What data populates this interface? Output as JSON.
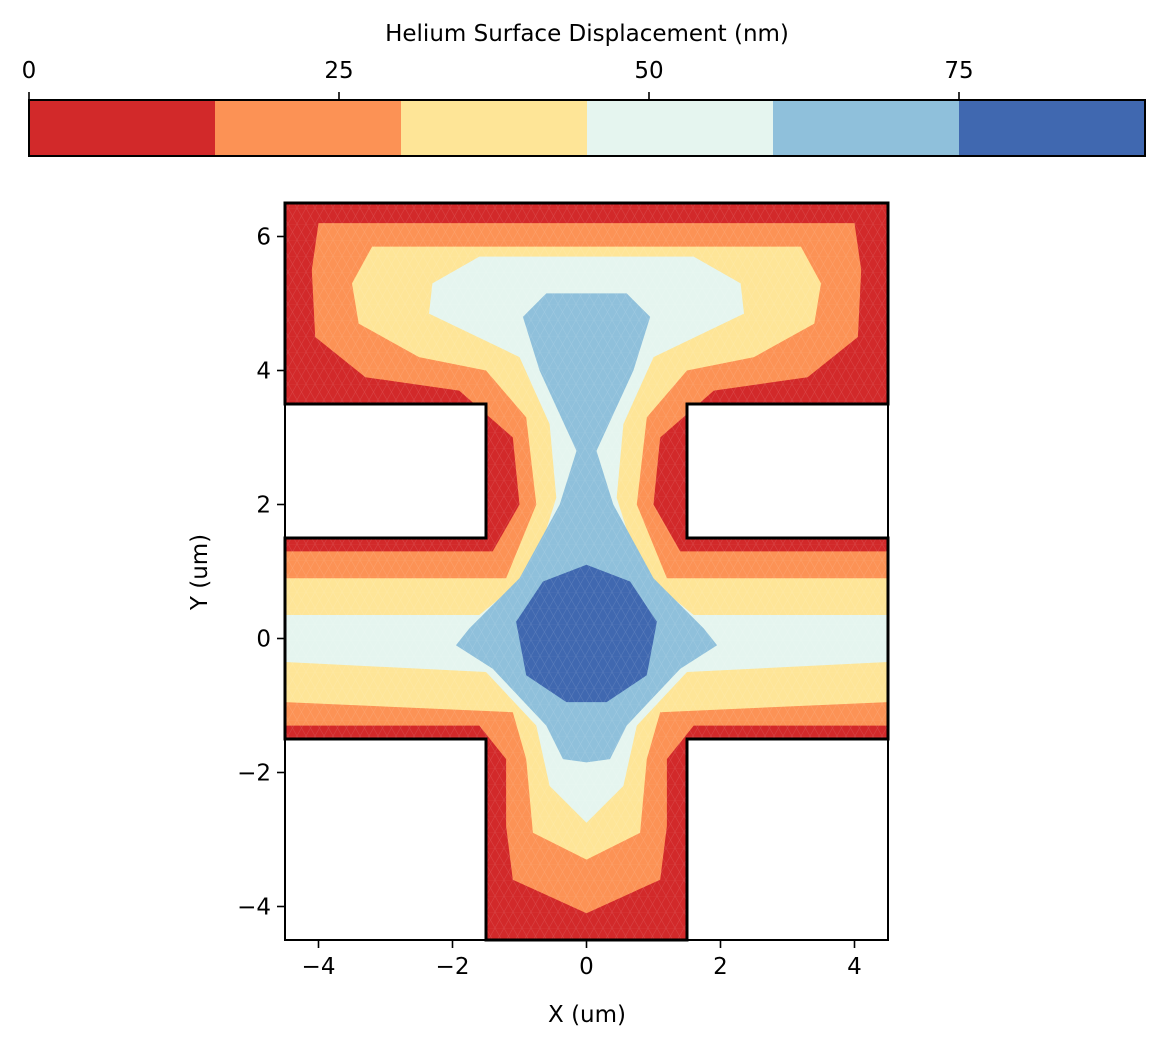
{
  "chart_data": {
    "type": "heatmap",
    "subtype": "filled-contour",
    "colorbar": {
      "label": "Helium Surface Displacement (nm)",
      "location": "top",
      "range": [
        0,
        90
      ],
      "ticks": [
        0,
        25,
        50,
        75
      ],
      "tick_labels": [
        "0",
        "25",
        "50",
        "75"
      ],
      "levels": [
        0,
        15,
        30,
        45,
        60,
        75,
        90
      ],
      "colors": [
        "#d2292a",
        "#fc9255",
        "#fee597",
        "#e5f5ef",
        "#8fc0db",
        "#4068b0"
      ]
    },
    "xlabel": "X (um)",
    "ylabel": "Y (um)",
    "xlim": [
      -4.5,
      4.5
    ],
    "ylim": [
      -4.5,
      6.5
    ],
    "xticks": [
      -4,
      -2,
      0,
      2,
      4
    ],
    "xtick_labels": [
      "−4",
      "−2",
      "0",
      "2",
      "4"
    ],
    "yticks": [
      -4,
      -2,
      0,
      2,
      4,
      6
    ],
    "ytick_labels": [
      "−4",
      "−2",
      "0",
      "2",
      "4",
      "6"
    ],
    "domain_outline_um": [
      [
        -4.5,
        6.5
      ],
      [
        4.5,
        6.5
      ],
      [
        4.5,
        3.5
      ],
      [
        1.5,
        3.5
      ],
      [
        1.5,
        1.5
      ],
      [
        4.5,
        1.5
      ],
      [
        4.5,
        -1.5
      ],
      [
        1.5,
        -1.5
      ],
      [
        1.5,
        -4.5
      ],
      [
        -1.5,
        -4.5
      ],
      [
        -1.5,
        -1.5
      ],
      [
        -4.5,
        -1.5
      ],
      [
        -4.5,
        1.5
      ],
      [
        -1.5,
        1.5
      ],
      [
        -1.5,
        3.5
      ],
      [
        -4.5,
        3.5
      ]
    ],
    "contour_regions_um": [
      {
        "level_index": 1,
        "polygon": [
          [
            -4.0,
            6.2
          ],
          [
            4.0,
            6.2
          ],
          [
            4.1,
            5.5
          ],
          [
            4.05,
            4.5
          ],
          [
            3.3,
            3.9
          ],
          [
            1.9,
            3.7
          ],
          [
            1.1,
            3.0
          ],
          [
            1.0,
            2.0
          ],
          [
            1.4,
            1.3
          ],
          [
            4.5,
            1.3
          ],
          [
            4.5,
            -1.3
          ],
          [
            1.6,
            -1.3
          ],
          [
            1.2,
            -1.8
          ],
          [
            1.2,
            -2.8
          ],
          [
            1.1,
            -3.6
          ],
          [
            0.0,
            -4.1
          ],
          [
            -1.1,
            -3.6
          ],
          [
            -1.2,
            -2.8
          ],
          [
            -1.2,
            -1.8
          ],
          [
            -1.6,
            -1.3
          ],
          [
            -4.5,
            -1.3
          ],
          [
            -4.5,
            1.3
          ],
          [
            -1.4,
            1.3
          ],
          [
            -1.0,
            2.0
          ],
          [
            -1.1,
            3.0
          ],
          [
            -1.9,
            3.7
          ],
          [
            -3.3,
            3.9
          ],
          [
            -4.05,
            4.5
          ],
          [
            -4.1,
            5.5
          ]
        ]
      },
      {
        "level_index": 2,
        "polygon": [
          [
            -3.2,
            5.85
          ],
          [
            3.2,
            5.85
          ],
          [
            3.5,
            5.3
          ],
          [
            3.4,
            4.7
          ],
          [
            2.5,
            4.2
          ],
          [
            1.5,
            4.0
          ],
          [
            0.9,
            3.3
          ],
          [
            0.75,
            2.0
          ],
          [
            1.2,
            0.9
          ],
          [
            4.5,
            0.9
          ],
          [
            4.5,
            -0.95
          ],
          [
            1.1,
            -1.1
          ],
          [
            0.9,
            -1.8
          ],
          [
            0.8,
            -2.9
          ],
          [
            0.0,
            -3.3
          ],
          [
            -0.8,
            -2.9
          ],
          [
            -0.9,
            -1.8
          ],
          [
            -1.1,
            -1.1
          ],
          [
            -4.5,
            -0.95
          ],
          [
            -4.5,
            0.9
          ],
          [
            -1.2,
            0.9
          ],
          [
            -0.75,
            2.0
          ],
          [
            -0.9,
            3.3
          ],
          [
            -1.5,
            4.0
          ],
          [
            -2.5,
            4.2
          ],
          [
            -3.4,
            4.7
          ],
          [
            -3.5,
            5.3
          ]
        ]
      },
      {
        "level_index": 3,
        "polygon": [
          [
            -1.6,
            5.7
          ],
          [
            1.6,
            5.7
          ],
          [
            2.3,
            5.3
          ],
          [
            2.35,
            4.85
          ],
          [
            1.0,
            4.2
          ],
          [
            0.55,
            3.2
          ],
          [
            0.45,
            2.1
          ],
          [
            0.8,
            1.0
          ],
          [
            1.6,
            0.35
          ],
          [
            4.5,
            0.35
          ],
          [
            4.5,
            -0.35
          ],
          [
            1.5,
            -0.5
          ],
          [
            0.75,
            -1.3
          ],
          [
            0.55,
            -2.2
          ],
          [
            0.0,
            -2.75
          ],
          [
            -0.55,
            -2.2
          ],
          [
            -0.75,
            -1.3
          ],
          [
            -1.5,
            -0.5
          ],
          [
            -4.5,
            -0.35
          ],
          [
            -4.5,
            0.35
          ],
          [
            -1.6,
            0.35
          ],
          [
            -0.8,
            1.0
          ],
          [
            -0.45,
            2.1
          ],
          [
            -0.55,
            3.2
          ],
          [
            -1.0,
            4.2
          ],
          [
            -2.35,
            4.85
          ],
          [
            -2.3,
            5.3
          ]
        ]
      },
      {
        "level_index": 4,
        "polygon": [
          [
            -0.6,
            5.15
          ],
          [
            0.6,
            5.15
          ],
          [
            0.95,
            4.8
          ],
          [
            0.7,
            4.0
          ],
          [
            0.15,
            2.8
          ],
          [
            0.4,
            2.0
          ],
          [
            1.0,
            0.9
          ],
          [
            1.75,
            0.15
          ],
          [
            1.95,
            -0.1
          ],
          [
            1.4,
            -0.45
          ],
          [
            0.6,
            -1.3
          ],
          [
            0.35,
            -1.8
          ],
          [
            0.0,
            -1.85
          ],
          [
            -0.35,
            -1.8
          ],
          [
            -0.6,
            -1.3
          ],
          [
            -1.4,
            -0.45
          ],
          [
            -1.95,
            -0.1
          ],
          [
            -1.75,
            0.15
          ],
          [
            -1.0,
            0.9
          ],
          [
            -0.4,
            2.0
          ],
          [
            -0.15,
            2.8
          ],
          [
            -0.7,
            4.0
          ],
          [
            -0.95,
            4.8
          ]
        ]
      },
      {
        "level_index": 5,
        "polygon": [
          [
            0.0,
            1.1
          ],
          [
            0.65,
            0.85
          ],
          [
            1.05,
            0.25
          ],
          [
            0.9,
            -0.55
          ],
          [
            0.3,
            -0.95
          ],
          [
            -0.3,
            -0.95
          ],
          [
            -0.9,
            -0.55
          ],
          [
            -1.05,
            0.25
          ],
          [
            -0.65,
            0.85
          ]
        ]
      }
    ]
  }
}
